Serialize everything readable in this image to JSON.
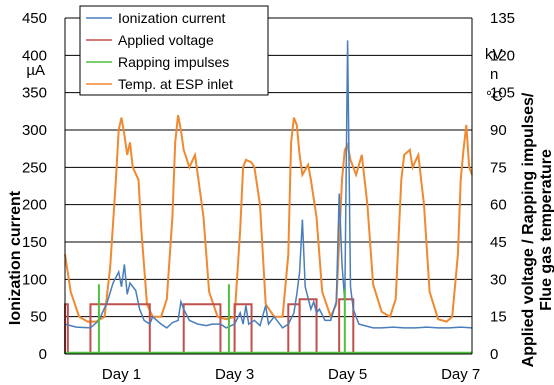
{
  "chart_data": {
    "type": "line",
    "title": "",
    "xlabel": "",
    "ylabel": "Ionization current",
    "ylabel_unit": "µA",
    "y2label_line1": "Applied voltage / Rapping impulses/",
    "y2label_line2": "Flue gas temperature",
    "y2label_units": [
      "kV",
      "n",
      "°C"
    ],
    "ylim": [
      0,
      450
    ],
    "y2lim": [
      0,
      135
    ],
    "xlim": [
      0,
      7.2
    ],
    "y_ticks": [
      0,
      50,
      100,
      150,
      200,
      250,
      300,
      350,
      400,
      450
    ],
    "y2_ticks": [
      0,
      15,
      30,
      45,
      60,
      75,
      90,
      105,
      120,
      135
    ],
    "x_ticks": [
      {
        "value": 1,
        "label": "Day 1"
      },
      {
        "value": 3,
        "label": "Day 3"
      },
      {
        "value": 5,
        "label": "Day 5"
      },
      {
        "value": 7,
        "label": "Day 7"
      }
    ],
    "grid": "horizontal",
    "legend_position": "top-left",
    "series": [
      {
        "name": "Ionization current",
        "axis": "left",
        "color": "#4a7ebb",
        "points": [
          [
            0,
            40
          ],
          [
            0.2,
            36
          ],
          [
            0.45,
            35
          ],
          [
            0.6,
            45
          ],
          [
            0.75,
            70
          ],
          [
            0.85,
            95
          ],
          [
            0.95,
            110
          ],
          [
            1.0,
            90
          ],
          [
            1.05,
            120
          ],
          [
            1.1,
            80
          ],
          [
            1.15,
            95
          ],
          [
            1.25,
            85
          ],
          [
            1.32,
            60
          ],
          [
            1.4,
            45
          ],
          [
            1.5,
            40
          ],
          [
            1.55,
            50
          ],
          [
            1.7,
            40
          ],
          [
            1.8,
            35
          ],
          [
            1.9,
            42
          ],
          [
            2.0,
            45
          ],
          [
            2.05,
            70
          ],
          [
            2.1,
            60
          ],
          [
            2.2,
            45
          ],
          [
            2.35,
            40
          ],
          [
            2.5,
            38
          ],
          [
            2.6,
            40
          ],
          [
            2.75,
            40
          ],
          [
            2.85,
            35
          ],
          [
            3.0,
            40
          ],
          [
            3.1,
            55
          ],
          [
            3.15,
            40
          ],
          [
            3.2,
            65
          ],
          [
            3.25,
            40
          ],
          [
            3.35,
            45
          ],
          [
            3.45,
            38
          ],
          [
            3.55,
            65
          ],
          [
            3.6,
            40
          ],
          [
            3.7,
            50
          ],
          [
            3.75,
            45
          ],
          [
            3.85,
            35
          ],
          [
            3.95,
            40
          ],
          [
            4.05,
            55
          ],
          [
            4.1,
            80
          ],
          [
            4.15,
            110
          ],
          [
            4.2,
            180
          ],
          [
            4.25,
            90
          ],
          [
            4.3,
            75
          ],
          [
            4.35,
            60
          ],
          [
            4.4,
            70
          ],
          [
            4.45,
            55
          ],
          [
            4.5,
            60
          ],
          [
            4.6,
            45
          ],
          [
            4.7,
            45
          ],
          [
            4.8,
            70
          ],
          [
            4.85,
            215
          ],
          [
            4.9,
            120
          ],
          [
            4.95,
            70
          ],
          [
            5.0,
            420
          ],
          [
            5.05,
            90
          ],
          [
            5.1,
            60
          ],
          [
            5.15,
            50
          ],
          [
            5.2,
            40
          ],
          [
            5.3,
            38
          ],
          [
            5.45,
            35
          ],
          [
            5.6,
            35
          ],
          [
            5.8,
            36
          ],
          [
            6.0,
            35
          ],
          [
            6.2,
            35
          ],
          [
            6.4,
            36
          ],
          [
            6.6,
            35
          ],
          [
            6.8,
            35
          ],
          [
            7.0,
            36
          ],
          [
            7.2,
            35
          ]
        ]
      },
      {
        "name": "Applied voltage",
        "axis": "right",
        "color": "#c0504d",
        "segments": [
          {
            "start": 0.0,
            "end": 0.05,
            "value": 20
          },
          {
            "start": 0.45,
            "end": 1.5,
            "value": 20
          },
          {
            "start": 2.1,
            "end": 2.75,
            "value": 20
          },
          {
            "start": 3.0,
            "end": 3.3,
            "value": 20
          },
          {
            "start": 3.95,
            "end": 4.15,
            "value": 20
          },
          {
            "start": 4.15,
            "end": 4.45,
            "value": 22
          },
          {
            "start": 4.85,
            "end": 5.1,
            "value": 22
          }
        ]
      },
      {
        "name": "Rapping impulses",
        "axis": "right",
        "color": "#4fc13f",
        "impulses": [
          {
            "x": 0.6,
            "value": 28
          },
          {
            "x": 2.9,
            "value": 28
          },
          {
            "x": 4.95,
            "value": 26
          }
        ],
        "baseline": 0.5
      },
      {
        "name": "Temp. at ESP inlet",
        "axis": "right",
        "color": "#f08a30",
        "points": [
          [
            0,
            40
          ],
          [
            0.1,
            25
          ],
          [
            0.25,
            15
          ],
          [
            0.4,
            13
          ],
          [
            0.55,
            13
          ],
          [
            0.7,
            15
          ],
          [
            0.8,
            35
          ],
          [
            0.9,
            70
          ],
          [
            0.95,
            90
          ],
          [
            1.0,
            95
          ],
          [
            1.05,
            88
          ],
          [
            1.1,
            80
          ],
          [
            1.15,
            85
          ],
          [
            1.2,
            75
          ],
          [
            1.3,
            70
          ],
          [
            1.35,
            50
          ],
          [
            1.45,
            20
          ],
          [
            1.55,
            15
          ],
          [
            1.7,
            15
          ],
          [
            1.8,
            22
          ],
          [
            1.9,
            55
          ],
          [
            1.95,
            85
          ],
          [
            2.0,
            96
          ],
          [
            2.05,
            90
          ],
          [
            2.1,
            82
          ],
          [
            2.2,
            75
          ],
          [
            2.3,
            80
          ],
          [
            2.35,
            72
          ],
          [
            2.45,
            55
          ],
          [
            2.55,
            25
          ],
          [
            2.7,
            15
          ],
          [
            2.85,
            14
          ],
          [
            3.0,
            15
          ],
          [
            3.1,
            50
          ],
          [
            3.15,
            75
          ],
          [
            3.2,
            78
          ],
          [
            3.3,
            77
          ],
          [
            3.35,
            75
          ],
          [
            3.45,
            60
          ],
          [
            3.55,
            20
          ],
          [
            3.7,
            15
          ],
          [
            3.85,
            15
          ],
          [
            3.95,
            40
          ],
          [
            4.0,
            85
          ],
          [
            4.05,
            95
          ],
          [
            4.1,
            92
          ],
          [
            4.15,
            80
          ],
          [
            4.2,
            72
          ],
          [
            4.3,
            76
          ],
          [
            4.35,
            70
          ],
          [
            4.45,
            55
          ],
          [
            4.55,
            25
          ],
          [
            4.7,
            15
          ],
          [
            4.8,
            20
          ],
          [
            4.9,
            70
          ],
          [
            4.95,
            82
          ],
          [
            5.0,
            84
          ],
          [
            5.05,
            78
          ],
          [
            5.15,
            72
          ],
          [
            5.25,
            80
          ],
          [
            5.35,
            60
          ],
          [
            5.45,
            28
          ],
          [
            5.6,
            17
          ],
          [
            5.75,
            15
          ],
          [
            5.85,
            22
          ],
          [
            5.95,
            70
          ],
          [
            6.0,
            80
          ],
          [
            6.1,
            82
          ],
          [
            6.15,
            75
          ],
          [
            6.25,
            80
          ],
          [
            6.35,
            60
          ],
          [
            6.45,
            25
          ],
          [
            6.6,
            14
          ],
          [
            6.75,
            13
          ],
          [
            6.85,
            15
          ],
          [
            6.95,
            40
          ],
          [
            7.0,
            70
          ],
          [
            7.05,
            82
          ],
          [
            7.1,
            92
          ],
          [
            7.15,
            75
          ],
          [
            7.2,
            72
          ]
        ]
      }
    ]
  }
}
